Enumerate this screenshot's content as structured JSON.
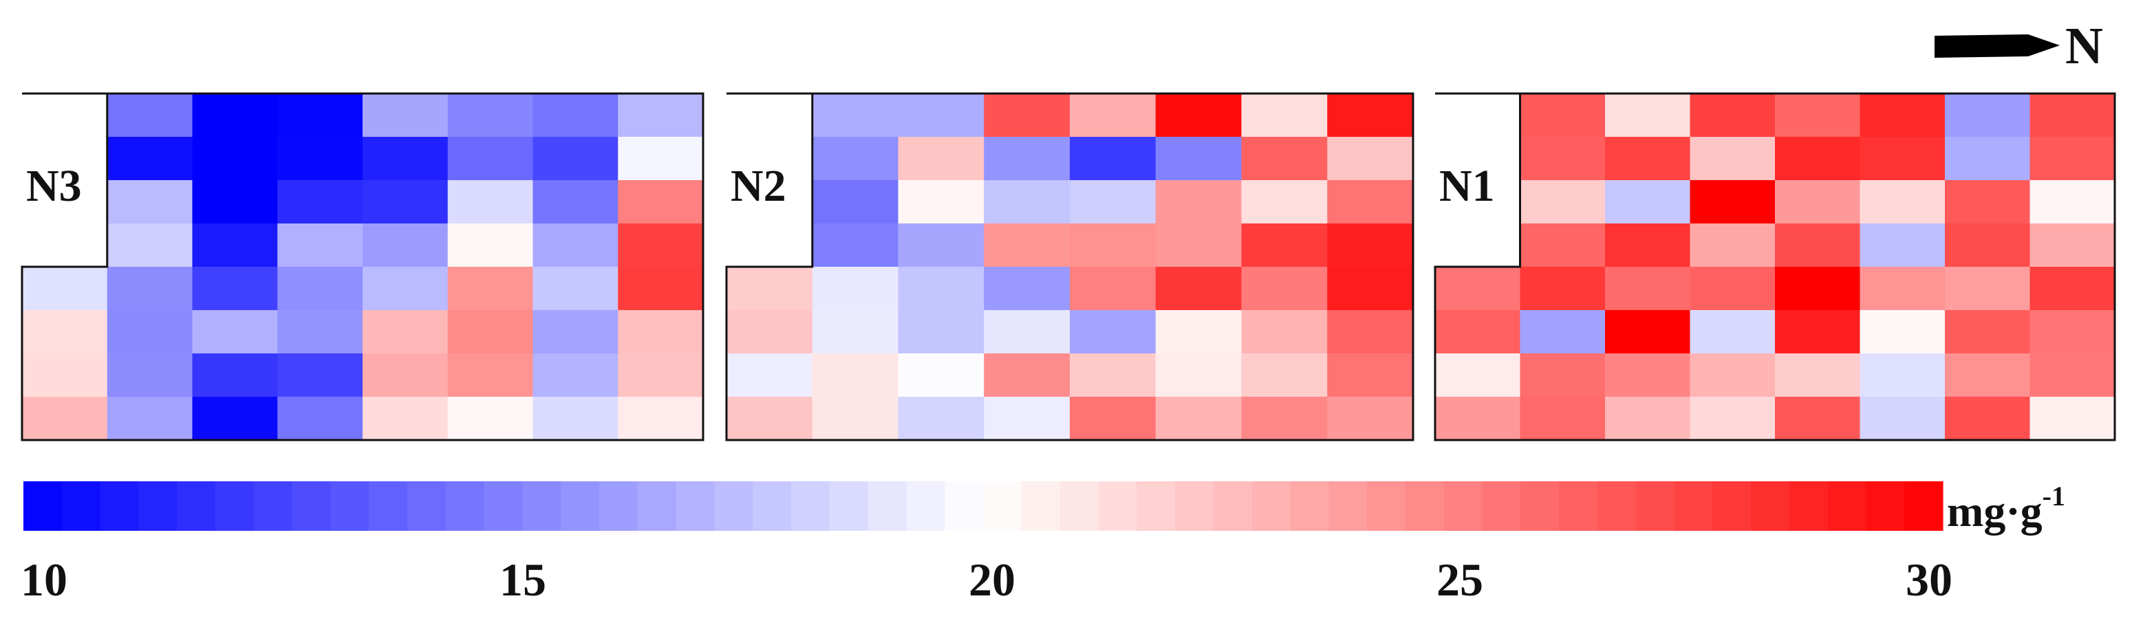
{
  "chart_data": {
    "type": "heatmap",
    "north_label": "N",
    "unit": {
      "base": "mg·g",
      "exponent": "-1"
    },
    "colorbar": {
      "min": 10,
      "max": 30,
      "ticks": [
        "10",
        "15",
        "20",
        "25",
        "30"
      ],
      "low_color": "#0000ff",
      "mid_color": "#ffffff",
      "high_color": "#ff0000"
    },
    "panels": [
      {
        "name": "N3",
        "rows": 8,
        "cols": 8,
        "notch": {
          "rows": 4,
          "cols": 1
        },
        "values": [
          [
            null,
            14.5,
            10.0,
            10.2,
            16.5,
            15.2,
            14.6,
            17.2
          ],
          [
            null,
            10.6,
            10.0,
            10.3,
            11.3,
            14.1,
            12.8,
            19.6
          ],
          [
            null,
            17.3,
            10.0,
            11.7,
            11.9,
            18.6,
            14.6,
            25.0
          ],
          [
            null,
            18.1,
            11.0,
            16.9,
            16.1,
            20.3,
            16.6,
            27.5
          ],
          [
            18.8,
            15.5,
            12.5,
            15.6,
            17.3,
            24.2,
            17.8,
            27.6
          ],
          [
            21.3,
            15.4,
            16.9,
            15.8,
            22.8,
            24.6,
            16.4,
            22.5
          ],
          [
            21.4,
            15.5,
            12.1,
            12.6,
            23.3,
            24.2,
            17.0,
            22.4
          ],
          [
            22.8,
            16.4,
            10.4,
            14.6,
            21.4,
            20.3,
            18.6,
            20.8
          ]
        ]
      },
      {
        "name": "N2",
        "rows": 8,
        "cols": 8,
        "notch": {
          "rows": 4,
          "cols": 1
        },
        "values": [
          [
            null,
            16.8,
            16.8,
            26.8,
            23.2,
            29.5,
            21.3,
            29.0
          ],
          [
            null,
            15.6,
            22.3,
            15.8,
            12.3,
            15.1,
            26.2,
            22.3
          ],
          [
            null,
            14.5,
            20.4,
            17.7,
            18.1,
            24.0,
            21.3,
            25.5
          ],
          [
            null,
            15.0,
            16.5,
            24.1,
            24.3,
            24.0,
            27.7,
            28.7
          ],
          [
            22.0,
            19.1,
            17.7,
            16.0,
            25.0,
            27.9,
            25.2,
            28.9
          ],
          [
            22.3,
            19.2,
            17.7,
            19.0,
            16.4,
            20.6,
            23.0,
            26.1
          ],
          [
            19.3,
            21.0,
            19.9,
            24.5,
            22.1,
            20.8,
            22.0,
            25.5
          ],
          [
            22.3,
            21.0,
            18.3,
            19.3,
            25.5,
            23.0,
            24.7,
            24.0
          ]
        ]
      },
      {
        "name": "N1",
        "rows": 8,
        "cols": 8,
        "notch": {
          "rows": 4,
          "cols": 1
        },
        "values": [
          [
            null,
            26.5,
            21.2,
            27.5,
            26.0,
            28.4,
            16.1,
            27.0
          ],
          [
            null,
            26.3,
            27.4,
            22.3,
            28.4,
            28.0,
            16.8,
            26.5
          ],
          [
            null,
            22.0,
            17.8,
            30.0,
            24.0,
            21.5,
            26.5,
            20.4
          ],
          [
            null,
            26.0,
            28.0,
            23.5,
            27.0,
            17.5,
            27.0,
            23.3
          ],
          [
            25.4,
            27.8,
            25.8,
            26.2,
            30.0,
            24.2,
            23.8,
            27.5
          ],
          [
            26.2,
            16.3,
            30.0,
            18.5,
            28.8,
            20.3,
            26.4,
            25.4
          ],
          [
            20.8,
            25.7,
            24.8,
            23.0,
            22.0,
            18.8,
            24.3,
            25.3
          ],
          [
            24.0,
            25.9,
            22.8,
            21.5,
            26.6,
            18.3,
            26.9,
            20.6
          ]
        ]
      }
    ]
  }
}
